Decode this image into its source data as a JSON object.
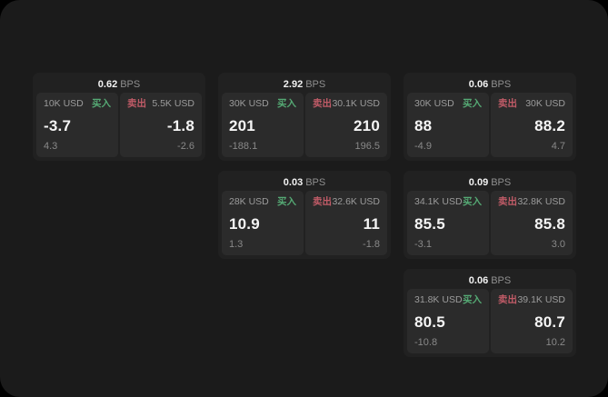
{
  "labels": {
    "bps_suffix": "BPS",
    "buy": "买入",
    "sell": "卖出"
  },
  "colors": {
    "background": "#1b1b1b",
    "card": "#212121",
    "panel": "#2b2b2b",
    "buy_green": "#55a974",
    "sell_red": "#c05b67",
    "text_primary": "#f5f5f5",
    "text_secondary": "#9c9c9c"
  },
  "cards": [
    {
      "col": 0,
      "row": 0,
      "bps": "0.62",
      "buy": {
        "amount": "10K USD",
        "value": "-3.7",
        "sub": "4.3"
      },
      "sell": {
        "amount": "5.5K USD",
        "value": "-1.8",
        "sub": "-2.6"
      }
    },
    {
      "col": 1,
      "row": 0,
      "bps": "2.92",
      "buy": {
        "amount": "30K USD",
        "value": "201",
        "sub": "-188.1"
      },
      "sell": {
        "amount": "30.1K USD",
        "value": "210",
        "sub": "196.5"
      }
    },
    {
      "col": 2,
      "row": 0,
      "bps": "0.06",
      "buy": {
        "amount": "30K USD",
        "value": "88",
        "sub": "-4.9"
      },
      "sell": {
        "amount": "30K USD",
        "value": "88.2",
        "sub": "4.7"
      }
    },
    {
      "col": 1,
      "row": 1,
      "bps": "0.03",
      "buy": {
        "amount": "28K USD",
        "value": "10.9",
        "sub": "1.3"
      },
      "sell": {
        "amount": "32.6K USD",
        "value": "11",
        "sub": "-1.8"
      }
    },
    {
      "col": 2,
      "row": 1,
      "bps": "0.09",
      "buy": {
        "amount": "34.1K USD",
        "value": "85.5",
        "sub": "-3.1"
      },
      "sell": {
        "amount": "32.8K USD",
        "value": "85.8",
        "sub": "3.0"
      }
    },
    {
      "col": 2,
      "row": 2,
      "bps": "0.06",
      "buy": {
        "amount": "31.8K USD",
        "value": "80.5",
        "sub": "-10.8"
      },
      "sell": {
        "amount": "39.1K USD",
        "value": "80.7",
        "sub": "10.2"
      }
    }
  ]
}
